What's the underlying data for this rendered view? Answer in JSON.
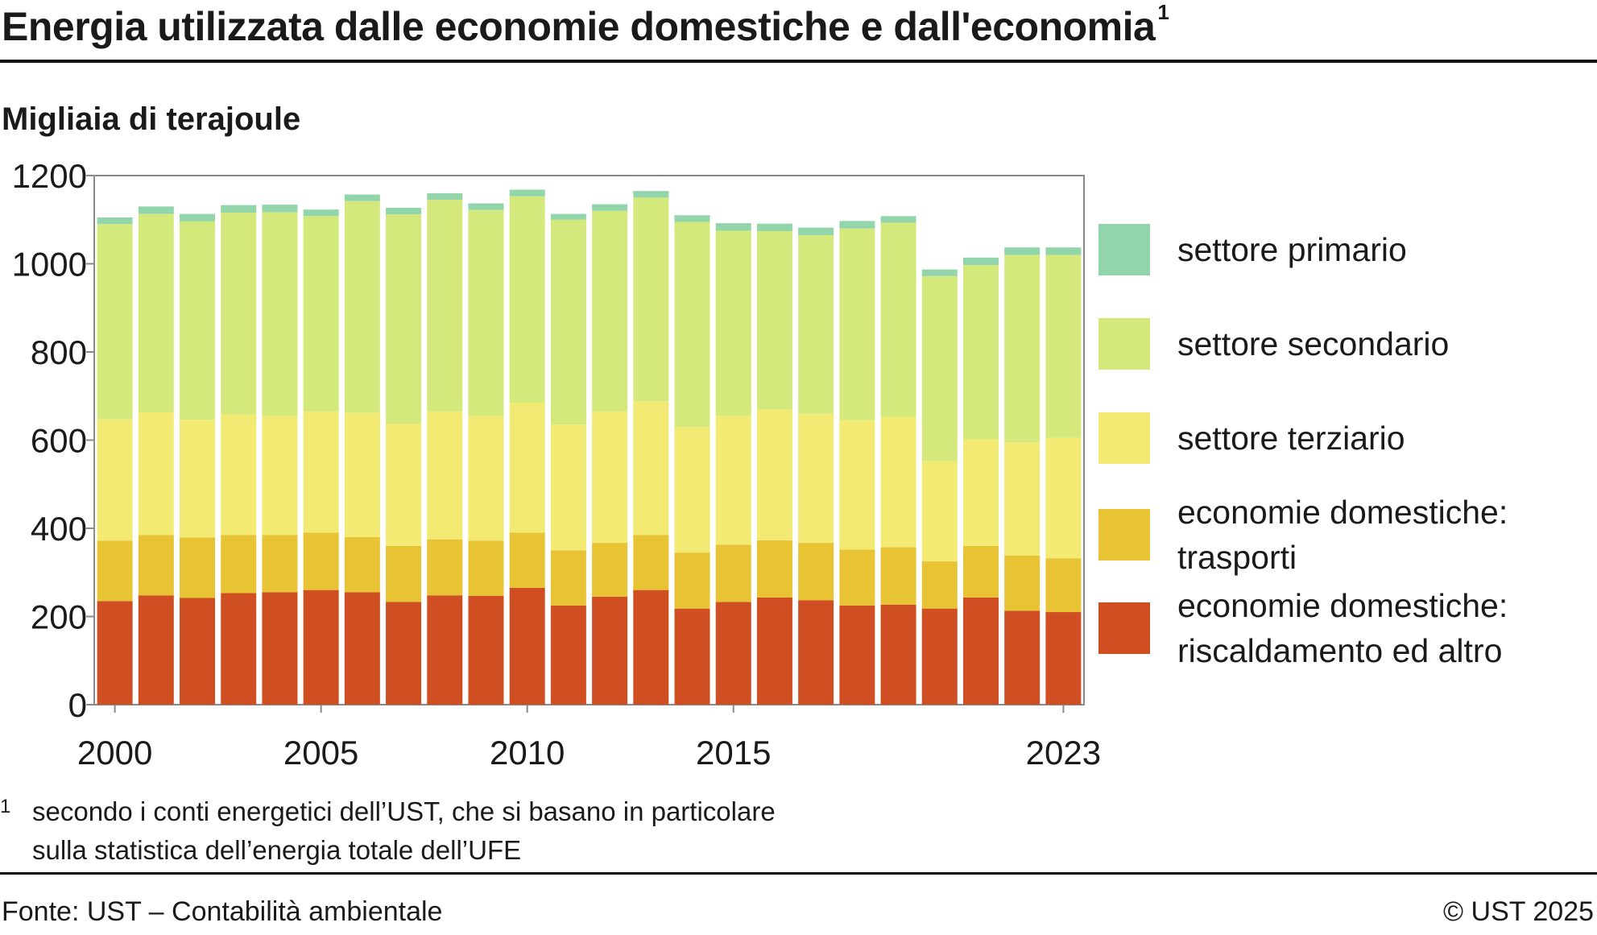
{
  "title": "Energia utilizzata dalle economie domestiche e dall'economia",
  "title_footnote_mark": "1",
  "unit_label": "Migliaia di terajoule",
  "footnote": {
    "mark": "1",
    "text": "secondo i conti energetici dell’UST, che si basano in particolare\nsulla statistica dell’energia totale dell’UFE"
  },
  "source": "Fonte: UST – Contabilità ambientale",
  "copyright": "© UST 2025",
  "chart_data": {
    "type": "bar",
    "stacked": true,
    "title": "Energia utilizzata dalle economie domestiche e dall'economia",
    "ylabel": "Migliaia di terajoule",
    "ylim": [
      0,
      1200
    ],
    "yticks": [
      0,
      200,
      400,
      600,
      800,
      1000,
      1200
    ],
    "grid": false,
    "legend_position": "right",
    "categories": [
      "2000",
      "2001",
      "2002",
      "2003",
      "2004",
      "2005",
      "2006",
      "2007",
      "2008",
      "2009",
      "2010",
      "2011",
      "2012",
      "2013",
      "2014",
      "2015",
      "2016",
      "2017",
      "2018",
      "2019",
      "2020",
      "2021",
      "2022",
      "2023"
    ],
    "x_tick_labels": [
      "2000",
      "2005",
      "2010",
      "2015",
      "2023"
    ],
    "series": [
      {
        "name": "economie domestiche: riscaldamento ed altro",
        "color": "#cf4f23",
        "values": [
          235,
          248,
          242,
          253,
          255,
          260,
          255,
          233,
          248,
          247,
          265,
          225,
          245,
          260,
          218,
          233,
          243,
          237,
          225,
          227,
          218,
          243,
          213,
          210
        ]
      },
      {
        "name": "economie domestiche: trasporti",
        "color": "#e8c334",
        "values": [
          137,
          137,
          137,
          132,
          130,
          130,
          125,
          127,
          127,
          125,
          125,
          125,
          122,
          125,
          127,
          130,
          130,
          130,
          127,
          130,
          107,
          117,
          125,
          122
        ]
      },
      {
        "name": "settore terziario",
        "color": "#f2ea73",
        "values": [
          275,
          278,
          267,
          273,
          270,
          275,
          282,
          277,
          290,
          283,
          295,
          285,
          298,
          303,
          285,
          292,
          296,
          293,
          293,
          296,
          227,
          242,
          257,
          273
        ]
      },
      {
        "name": "settore secondario",
        "color": "#d4e97c",
        "values": [
          443,
          450,
          450,
          458,
          462,
          443,
          480,
          475,
          480,
          467,
          468,
          465,
          455,
          462,
          465,
          420,
          405,
          405,
          435,
          440,
          420,
          395,
          425,
          415
        ]
      },
      {
        "name": "settore primario",
        "color": "#93d5aa",
        "values": [
          15,
          17,
          17,
          17,
          17,
          15,
          15,
          15,
          15,
          15,
          15,
          13,
          15,
          15,
          15,
          17,
          17,
          17,
          17,
          15,
          15,
          17,
          17,
          17
        ]
      }
    ]
  }
}
